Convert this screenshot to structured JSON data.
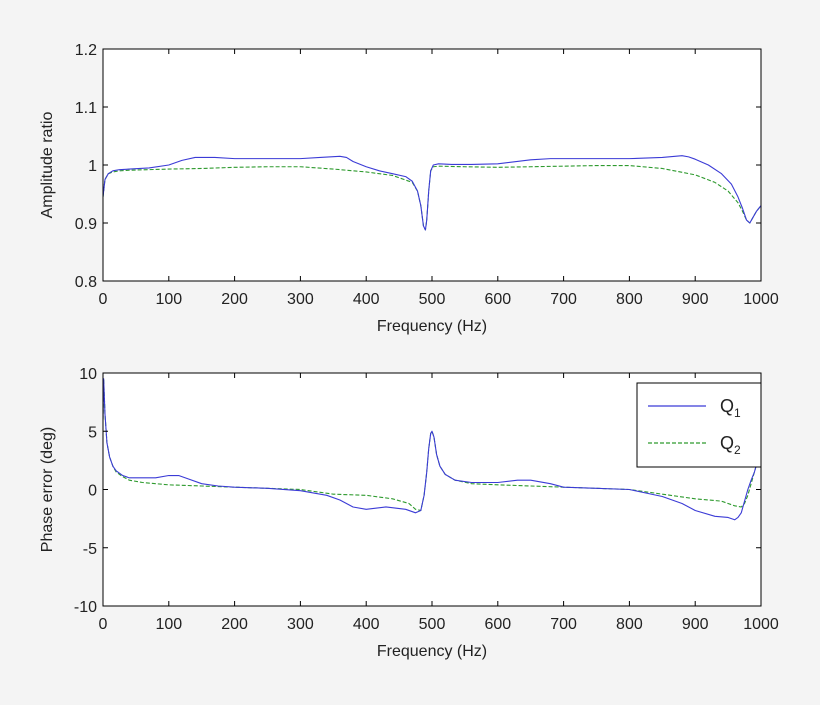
{
  "colors": {
    "background": "#f4f4f4",
    "plot_background": "#ffffff",
    "axis": "#000000",
    "q1": "#3b3bd6",
    "q2": "#2e9a2e"
  },
  "legend": {
    "entries": [
      {
        "base": "Q",
        "sub": "1"
      },
      {
        "base": "Q",
        "sub": "2"
      }
    ]
  },
  "chart_data": [
    {
      "type": "line",
      "xlabel": "Frequency (Hz)",
      "ylabel": "Amplitude ratio",
      "xlim": [
        0,
        1000
      ],
      "ylim": [
        0.8,
        1.2
      ],
      "xticks": [
        0,
        100,
        200,
        300,
        400,
        500,
        600,
        700,
        800,
        900,
        1000
      ],
      "xtick_labels": [
        "0",
        "100",
        "200",
        "300",
        "400",
        "500",
        "600",
        "700",
        "800",
        "900",
        "1000"
      ],
      "yticks": [
        0.8,
        0.9,
        1.0,
        1.1,
        1.2
      ],
      "ytick_labels": [
        "0.8",
        "0.9",
        "1",
        "1.1",
        "1.2"
      ],
      "grid": false,
      "series": [
        {
          "name": "Q1",
          "style": "solid",
          "x": [
            0,
            3,
            8,
            15,
            25,
            40,
            70,
            100,
            120,
            140,
            170,
            200,
            250,
            300,
            330,
            360,
            370,
            380,
            400,
            420,
            440,
            460,
            470,
            478,
            483,
            487,
            490,
            492,
            495,
            498,
            502,
            510,
            530,
            560,
            600,
            650,
            680,
            700,
            750,
            800,
            850,
            880,
            890,
            900,
            920,
            940,
            955,
            965,
            972,
            978,
            983,
            988,
            993,
            1000
          ],
          "y": [
            0.945,
            0.975,
            0.985,
            0.99,
            0.992,
            0.993,
            0.995,
            1.0,
            1.008,
            1.013,
            1.013,
            1.011,
            1.011,
            1.011,
            1.013,
            1.015,
            1.013,
            1.006,
            0.997,
            0.99,
            0.985,
            0.98,
            0.972,
            0.955,
            0.93,
            0.895,
            0.888,
            0.905,
            0.955,
            0.99,
            1.0,
            1.002,
            1.001,
            1.001,
            1.002,
            1.009,
            1.011,
            1.011,
            1.011,
            1.011,
            1.013,
            1.016,
            1.014,
            1.01,
            1.0,
            0.985,
            0.967,
            0.945,
            0.925,
            0.905,
            0.9,
            0.91,
            0.92,
            0.93
          ]
        },
        {
          "name": "Q2",
          "style": "dashed",
          "x": [
            0,
            3,
            8,
            15,
            25,
            40,
            70,
            100,
            150,
            200,
            250,
            300,
            350,
            400,
            440,
            470,
            478,
            483,
            487,
            490,
            492,
            495,
            498,
            502,
            510,
            550,
            600,
            650,
            700,
            750,
            800,
            850,
            900,
            930,
            950,
            965,
            972,
            978,
            983,
            988,
            993,
            1000
          ],
          "y": [
            0.945,
            0.975,
            0.985,
            0.988,
            0.99,
            0.991,
            0.992,
            0.993,
            0.994,
            0.996,
            0.997,
            0.997,
            0.993,
            0.988,
            0.982,
            0.97,
            0.955,
            0.93,
            0.895,
            0.888,
            0.905,
            0.955,
            0.99,
            0.997,
            0.998,
            0.997,
            0.996,
            0.997,
            0.998,
            0.999,
            0.999,
            0.994,
            0.983,
            0.97,
            0.955,
            0.935,
            0.92,
            0.905,
            0.9,
            0.91,
            0.92,
            0.93
          ]
        }
      ]
    },
    {
      "type": "line",
      "xlabel": "Frequency (Hz)",
      "ylabel": "Phase error (deg)",
      "xlim": [
        0,
        1000
      ],
      "ylim": [
        -10,
        10
      ],
      "xticks": [
        0,
        100,
        200,
        300,
        400,
        500,
        600,
        700,
        800,
        900,
        1000
      ],
      "xtick_labels": [
        "0",
        "100",
        "200",
        "300",
        "400",
        "500",
        "600",
        "700",
        "800",
        "900",
        "1000"
      ],
      "yticks": [
        -10,
        -5,
        0,
        5,
        10
      ],
      "ytick_labels": [
        "-10",
        "-5",
        "0",
        "5",
        "10"
      ],
      "grid": false,
      "legend_position": "top-right",
      "series": [
        {
          "name": "Q1",
          "style": "solid",
          "x": [
            0,
            1,
            3,
            6,
            10,
            15,
            20,
            30,
            40,
            60,
            80,
            100,
            115,
            130,
            150,
            175,
            200,
            250,
            300,
            340,
            360,
            380,
            400,
            430,
            460,
            475,
            483,
            488,
            492,
            495,
            498,
            500,
            503,
            507,
            512,
            520,
            535,
            560,
            600,
            630,
            650,
            680,
            700,
            750,
            800,
            850,
            880,
            900,
            930,
            950,
            960,
            965,
            970,
            975,
            980,
            985,
            990,
            995,
            1000
          ],
          "y": [
            6,
            9.5,
            6.5,
            4,
            2.8,
            2,
            1.6,
            1.2,
            1.0,
            1.0,
            1.0,
            1.2,
            1.2,
            0.9,
            0.5,
            0.3,
            0.2,
            0.1,
            -0.1,
            -0.5,
            -0.9,
            -1.5,
            -1.7,
            -1.5,
            -1.7,
            -2.0,
            -1.8,
            -0.5,
            1.5,
            3.5,
            4.8,
            5.0,
            4.5,
            3.0,
            2.0,
            1.3,
            0.8,
            0.6,
            0.6,
            0.8,
            0.8,
            0.5,
            0.2,
            0.1,
            0.0,
            -0.6,
            -1.2,
            -1.8,
            -2.3,
            -2.4,
            -2.6,
            -2.4,
            -2.0,
            -1.0,
            0.0,
            0.8,
            1.5,
            2.5,
            3.2
          ]
        },
        {
          "name": "Q2",
          "style": "dashed",
          "x": [
            0,
            1,
            3,
            6,
            10,
            15,
            20,
            30,
            40,
            60,
            80,
            100,
            150,
            200,
            250,
            300,
            350,
            400,
            440,
            465,
            475,
            483,
            488,
            492,
            495,
            498,
            500,
            503,
            507,
            512,
            520,
            535,
            560,
            600,
            650,
            700,
            750,
            800,
            850,
            900,
            940,
            960,
            970,
            975,
            980,
            985,
            990,
            995,
            1000
          ],
          "y": [
            6,
            9.5,
            6.5,
            4,
            2.8,
            2,
            1.5,
            1.1,
            0.8,
            0.6,
            0.5,
            0.4,
            0.3,
            0.2,
            0.1,
            0.0,
            -0.4,
            -0.5,
            -0.8,
            -1.2,
            -1.7,
            -1.8,
            -0.5,
            1.5,
            3.5,
            4.8,
            5.0,
            4.5,
            3.0,
            2.0,
            1.3,
            0.8,
            0.5,
            0.4,
            0.3,
            0.2,
            0.1,
            0.0,
            -0.4,
            -0.8,
            -1.0,
            -1.4,
            -1.5,
            -1.2,
            -0.5,
            0.5,
            1.5,
            2.5,
            3.5
          ]
        }
      ]
    }
  ]
}
